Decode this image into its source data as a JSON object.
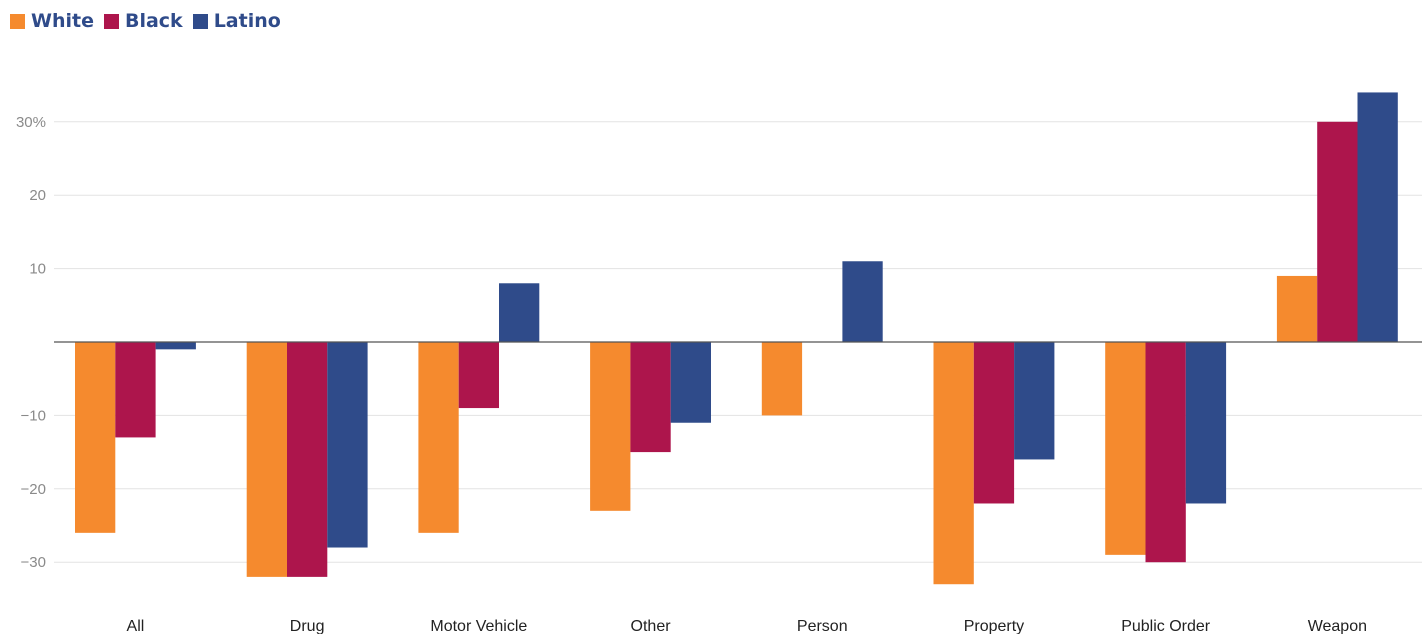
{
  "chart_data": {
    "type": "bar",
    "categories": [
      "All",
      "Drug",
      "Motor Vehicle",
      "Other",
      "Person",
      "Property",
      "Public Order",
      "Weapon"
    ],
    "series": [
      {
        "name": "White",
        "color": "#f58a2e",
        "values": [
          -26,
          -32,
          -26,
          -23,
          -10,
          -33,
          -29,
          9
        ]
      },
      {
        "name": "Black",
        "color": "#ad154c",
        "values": [
          -13,
          -32,
          -9,
          -15,
          0,
          -22,
          -30,
          30
        ]
      },
      {
        "name": "Latino",
        "color": "#2f4b8a",
        "values": [
          -1,
          -28,
          8,
          -11,
          11,
          -16,
          -22,
          34
        ]
      }
    ],
    "y_ticks": [
      30,
      20,
      10,
      -10,
      -20,
      -30
    ],
    "y_tick_labels": [
      "30%",
      "20",
      "10",
      "−10",
      "−20",
      "−30"
    ],
    "ylim": [
      -34,
      35
    ],
    "grid": true,
    "legend_position": "top-left",
    "xlabel": "",
    "ylabel": ""
  }
}
